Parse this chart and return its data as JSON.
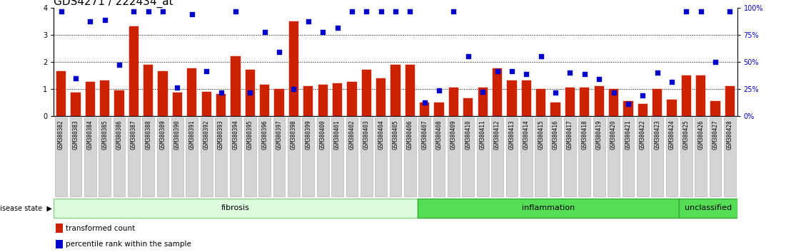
{
  "title": "GDS4271 / 222434_at",
  "samples": [
    "GSM380382",
    "GSM380383",
    "GSM380384",
    "GSM380385",
    "GSM380386",
    "GSM380387",
    "GSM380388",
    "GSM380389",
    "GSM380390",
    "GSM380391",
    "GSM380392",
    "GSM380393",
    "GSM380394",
    "GSM380395",
    "GSM380396",
    "GSM380397",
    "GSM380398",
    "GSM380399",
    "GSM380400",
    "GSM380401",
    "GSM380402",
    "GSM380403",
    "GSM380404",
    "GSM380405",
    "GSM380406",
    "GSM380407",
    "GSM380408",
    "GSM380409",
    "GSM380410",
    "GSM380411",
    "GSM380412",
    "GSM380413",
    "GSM380414",
    "GSM380415",
    "GSM380416",
    "GSM380417",
    "GSM380418",
    "GSM380419",
    "GSM380420",
    "GSM380421",
    "GSM380422",
    "GSM380423",
    "GSM380424",
    "GSM380425",
    "GSM380426",
    "GSM380427",
    "GSM380428"
  ],
  "bar_values": [
    1.65,
    0.85,
    1.25,
    1.3,
    0.95,
    3.3,
    1.9,
    1.65,
    0.85,
    1.75,
    0.9,
    0.8,
    2.2,
    1.7,
    1.15,
    1.0,
    3.5,
    1.1,
    1.15,
    1.2,
    1.25,
    1.7,
    1.4,
    1.9,
    1.9,
    0.5,
    0.5,
    1.05,
    0.65,
    1.05,
    1.75,
    1.3,
    1.3,
    1.0,
    0.5,
    1.05,
    1.05,
    1.1,
    1.0,
    0.55,
    0.45,
    1.0,
    0.6,
    1.5,
    1.5,
    0.55,
    1.1
  ],
  "dot_values": [
    3.85,
    1.4,
    3.5,
    3.55,
    1.9,
    3.85,
    3.85,
    3.85,
    1.05,
    3.75,
    1.65,
    0.85,
    3.85,
    0.85,
    3.1,
    2.35,
    1.0,
    3.5,
    3.1,
    3.25,
    3.85,
    3.85,
    3.85,
    3.85,
    3.85,
    0.5,
    0.95,
    3.85,
    2.2,
    0.9,
    1.65,
    1.65,
    1.55,
    2.2,
    0.85,
    1.6,
    1.55,
    1.35,
    0.85,
    0.45,
    0.75,
    1.6,
    1.25,
    3.85,
    3.85,
    2.0,
    3.85
  ],
  "groups": [
    {
      "label": "fibrosis",
      "start": 0,
      "end": 24,
      "fill": "#ddfcdd",
      "edge": "#88cc88"
    },
    {
      "label": "inflammation",
      "start": 25,
      "end": 42,
      "fill": "#44cc44",
      "edge": "#229922"
    },
    {
      "label": "unclassified",
      "start": 43,
      "end": 46,
      "fill": "#44cc44",
      "edge": "#229922"
    }
  ],
  "ylim": [
    0,
    4.0
  ],
  "yticks_left": [
    0,
    1,
    2,
    3,
    4
  ],
  "yticks_right": [
    0,
    25,
    50,
    75,
    100
  ],
  "bar_color": "#cc2200",
  "dot_color": "#0000cc",
  "title_fontsize": 11,
  "axis_fontsize": 7,
  "label_fontsize": 8
}
